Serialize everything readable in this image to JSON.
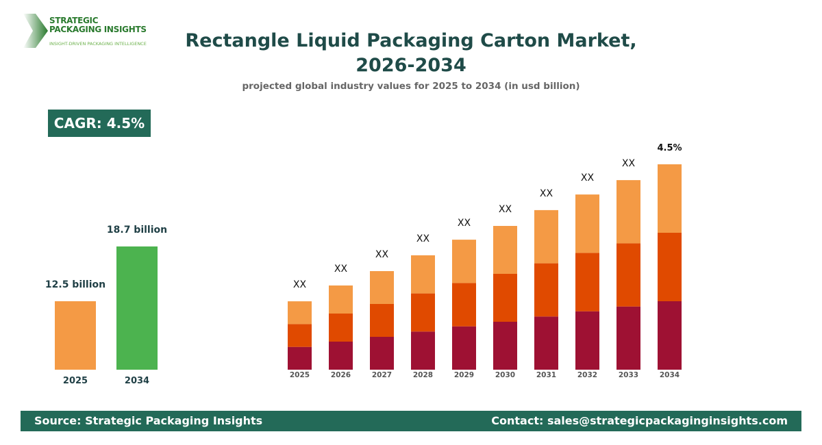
{
  "logo": {
    "line1": "STRATEGIC",
    "line2": "PACKAGING INSIGHTS",
    "tagline": "INSIGHT-DRIVEN PACKAGING INTELLIGENCE"
  },
  "title_line1": "Rectangle Liquid Packaging Carton Market,",
  "title_line2": "2026-2034",
  "subtitle": "projected global industry values for 2025 to 2034 (in usd billion)",
  "cagr": "CAGR: 4.5%",
  "footer": {
    "source": "Source: Strategic Packaging Insights",
    "contact": "Contact: sales@strategicpackaginginsights.com"
  },
  "colors": {
    "brand": "#236a58",
    "seg_bottom": "#9e1133",
    "seg_mid": "#e04a00",
    "seg_top": "#f49a45",
    "bar2025": "#f49a45",
    "bar2034": "#4cb34f"
  },
  "chart_data": [
    {
      "type": "bar",
      "categories": [
        "2025",
        "2034"
      ],
      "values": [
        12.5,
        18.7
      ],
      "data_labels": [
        "12.5 billion",
        "18.7 billion"
      ]
    },
    {
      "type": "bar",
      "stacked": true,
      "categories": [
        "2025",
        "2026",
        "2027",
        "2028",
        "2029",
        "2030",
        "2031",
        "2032",
        "2033",
        "2034"
      ],
      "note": "relative values; no axis printed",
      "series": [
        {
          "values": [
            0.333,
            0.41,
            0.48,
            0.557,
            0.633,
            0.7,
            0.777,
            0.853,
            0.923,
            1.0
          ]
        },
        {
          "values": [
            0.333,
            0.41,
            0.48,
            0.557,
            0.633,
            0.7,
            0.777,
            0.853,
            0.923,
            1.0
          ]
        },
        {
          "values": [
            0.333,
            0.41,
            0.48,
            0.557,
            0.633,
            0.7,
            0.777,
            0.853,
            0.923,
            1.0
          ]
        }
      ],
      "data_labels": [
        "XX",
        "XX",
        "XX",
        "XX",
        "XX",
        "XX",
        "XX",
        "XX",
        "XX",
        "4.5%"
      ]
    }
  ]
}
